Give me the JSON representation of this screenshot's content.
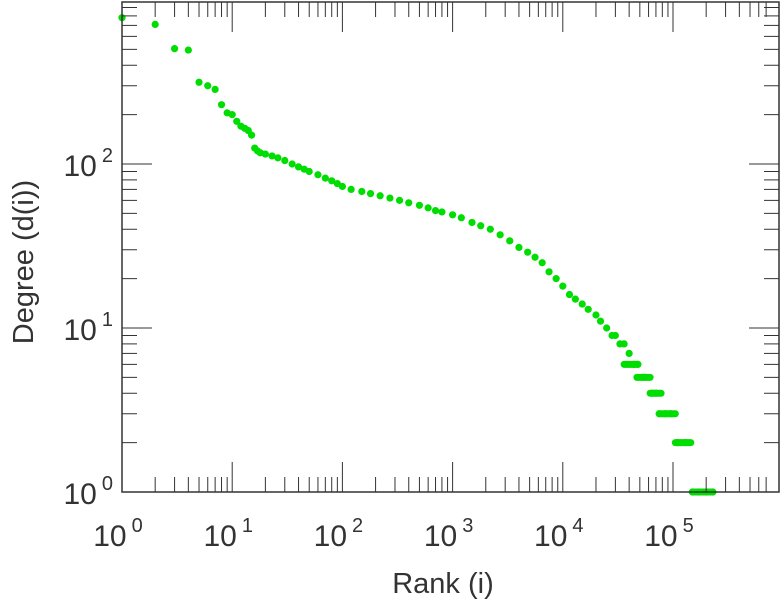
{
  "chart_data": {
    "type": "scatter",
    "xlabel": "Rank (i)",
    "ylabel": "Degree (d(i))",
    "x_scale": "log",
    "y_scale": "log",
    "xlim": [
      1,
      700000
    ],
    "ylim": [
      1,
      900
    ],
    "grid": false,
    "marker_color": "#00dd00",
    "x_ticks": [
      {
        "base": "10",
        "exp": "0",
        "value": 1
      },
      {
        "base": "10",
        "exp": "1",
        "value": 10
      },
      {
        "base": "10",
        "exp": "2",
        "value": 100
      },
      {
        "base": "10",
        "exp": "3",
        "value": 1000
      },
      {
        "base": "10",
        "exp": "4",
        "value": 10000
      },
      {
        "base": "10",
        "exp": "5",
        "value": 100000
      }
    ],
    "y_ticks": [
      {
        "base": "10",
        "exp": "0",
        "value": 1
      },
      {
        "base": "10",
        "exp": "1",
        "value": 10
      },
      {
        "base": "10",
        "exp": "2",
        "value": 100
      }
    ],
    "points": [
      [
        1,
        780
      ],
      [
        2,
        710
      ],
      [
        3,
        505
      ],
      [
        4,
        495
      ],
      [
        5,
        315
      ],
      [
        6,
        300
      ],
      [
        7,
        285
      ],
      [
        8,
        230
      ],
      [
        9,
        205
      ],
      [
        10,
        200
      ],
      [
        11,
        182
      ],
      [
        12,
        170
      ],
      [
        13,
        165
      ],
      [
        14,
        160
      ],
      [
        15,
        150
      ],
      [
        16,
        125
      ],
      [
        17,
        120
      ],
      [
        18,
        117
      ],
      [
        20,
        115
      ],
      [
        23,
        112
      ],
      [
        26,
        109
      ],
      [
        30,
        105
      ],
      [
        35,
        100
      ],
      [
        40,
        96
      ],
      [
        45,
        93
      ],
      [
        50,
        90
      ],
      [
        60,
        86
      ],
      [
        70,
        82
      ],
      [
        80,
        79
      ],
      [
        90,
        76
      ],
      [
        100,
        73
      ],
      [
        120,
        70
      ],
      [
        150,
        68
      ],
      [
        180,
        66
      ],
      [
        220,
        64
      ],
      [
        270,
        62
      ],
      [
        330,
        60
      ],
      [
        400,
        58
      ],
      [
        500,
        56
      ],
      [
        600,
        54
      ],
      [
        700,
        52
      ],
      [
        800,
        51
      ],
      [
        1000,
        49
      ],
      [
        1200,
        47
      ],
      [
        1500,
        44
      ],
      [
        1800,
        42
      ],
      [
        2200,
        40
      ],
      [
        2700,
        37
      ],
      [
        3300,
        34
      ],
      [
        4000,
        31
      ],
      [
        4800,
        29
      ],
      [
        5600,
        27
      ],
      [
        6500,
        25
      ],
      [
        7500,
        22
      ],
      [
        8700,
        20
      ],
      [
        10000,
        18
      ],
      [
        11500,
        16
      ],
      [
        13000,
        15
      ],
      [
        15000,
        14
      ],
      [
        17000,
        13
      ],
      [
        20000,
        12
      ],
      [
        22000,
        11
      ],
      [
        25000,
        10
      ],
      [
        28000,
        9
      ],
      [
        30000,
        9
      ],
      [
        33000,
        8
      ],
      [
        36000,
        8
      ],
      [
        40000,
        7
      ],
      [
        44000,
        6
      ],
      [
        48000,
        6
      ],
      [
        55000,
        5
      ],
      [
        65000,
        4
      ],
      [
        70000,
        4
      ],
      [
        75000,
        3
      ],
      [
        85000,
        3
      ],
      [
        95000,
        3
      ],
      [
        110000,
        2
      ],
      [
        130000,
        2
      ],
      [
        150000,
        1
      ],
      [
        170000,
        1
      ],
      [
        200000,
        1
      ],
      [
        230000,
        1
      ]
    ],
    "bands": [
      {
        "y": 6,
        "x_from": 36000,
        "x_to": 48000
      },
      {
        "y": 5,
        "x_from": 47000,
        "x_to": 62000
      },
      {
        "y": 4,
        "x_from": 62000,
        "x_to": 78000
      },
      {
        "y": 3,
        "x_from": 75000,
        "x_to": 105000
      },
      {
        "y": 2,
        "x_from": 105000,
        "x_to": 145000
      },
      {
        "y": 1,
        "x_from": 150000,
        "x_to": 230000
      }
    ]
  }
}
